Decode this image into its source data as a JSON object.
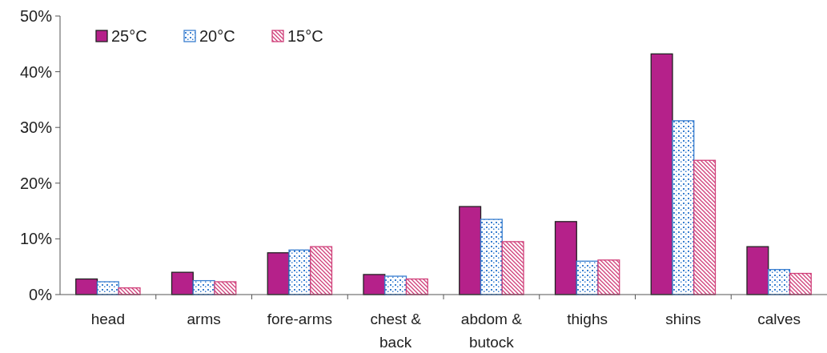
{
  "chart_data": {
    "type": "bar",
    "categories": [
      "head",
      "arms",
      "fore-arms",
      "chest & back",
      "abdom & butock",
      "thighs",
      "shins",
      "calves"
    ],
    "series": [
      {
        "name": "25°C",
        "color": "#b5218a",
        "values": [
          2.8,
          4.0,
          7.5,
          3.6,
          15.8,
          13.1,
          43.2,
          8.6
        ]
      },
      {
        "name": "20°C",
        "color": "#3a7fd0",
        "values": [
          2.3,
          2.5,
          8.0,
          3.3,
          13.5,
          6.0,
          31.2,
          4.5
        ]
      },
      {
        "name": "15°C",
        "color": "#d0407a",
        "values": [
          1.2,
          2.3,
          8.6,
          2.8,
          9.5,
          6.2,
          24.1,
          3.8
        ]
      }
    ],
    "ylim": [
      0,
      50
    ],
    "yticks": [
      {
        "value": 0,
        "label": "0%"
      },
      {
        "value": 10,
        "label": "10%"
      },
      {
        "value": 20,
        "label": "20%"
      },
      {
        "value": 30,
        "label": "30%"
      },
      {
        "value": 40,
        "label": "40%"
      },
      {
        "value": 50,
        "label": "50%"
      }
    ],
    "legend": "top left",
    "grid": false
  }
}
